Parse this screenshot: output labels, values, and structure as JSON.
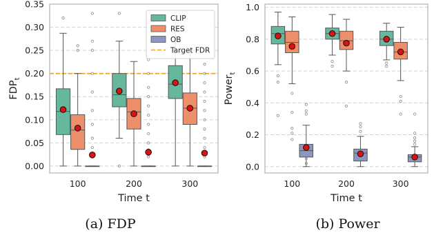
{
  "colors": {
    "CLIP": "#66b79b",
    "RES": "#ec8f6a",
    "OB": "#8b97c0",
    "target": "#e9a21b",
    "mean_marker": "#dd1111",
    "grid": "#d4d4d4"
  },
  "chart_data": [
    {
      "type": "box",
      "panel_caption": "(a) FDP",
      "xlabel": "Time t",
      "ylabel": "FDP",
      "ylabel_sub": "t",
      "categories": [
        "100",
        "200",
        "300"
      ],
      "ylim": [
        -0.015,
        0.35
      ],
      "yticks": [
        "0.00",
        "0.05",
        "0.10",
        "0.15",
        "0.20",
        "0.25",
        "0.30",
        "0.35"
      ],
      "grid": "horizontal dashed",
      "legend": {
        "placement": "top-right",
        "entries": [
          "CLIP",
          "RES",
          "OB",
          "Target FDR"
        ]
      },
      "target_line": {
        "label": "Target FDR",
        "value": 0.2
      },
      "series": [
        {
          "name": "CLIP",
          "boxes": [
            {
              "whisker_low": 0.0,
              "q1": 0.068,
              "median": 0.118,
              "q3": 0.167,
              "whisker_high": 0.287,
              "mean": 0.122,
              "outliers": [
                0.32
              ]
            },
            {
              "whisker_low": 0.06,
              "q1": 0.128,
              "median": 0.154,
              "q3": 0.2,
              "whisker_high": 0.27,
              "mean": 0.162,
              "outliers": [
                0.0,
                0.33
              ]
            },
            {
              "whisker_low": 0.0,
              "q1": 0.146,
              "median": 0.177,
              "q3": 0.217,
              "whisker_high": 0.315,
              "mean": 0.18,
              "outliers": []
            }
          ]
        },
        {
          "name": "RES",
          "boxes": [
            {
              "whisker_low": 0.0,
              "q1": 0.036,
              "median": 0.078,
              "q3": 0.111,
              "whisker_high": 0.2,
              "mean": 0.082,
              "outliers": [
                0.25,
                0.26
              ]
            },
            {
              "whisker_low": 0.0,
              "q1": 0.08,
              "median": 0.117,
              "q3": 0.146,
              "whisker_high": 0.226,
              "mean": 0.113,
              "outliers": []
            },
            {
              "whisker_low": 0.0,
              "q1": 0.09,
              "median": 0.125,
              "q3": 0.158,
              "whisker_high": 0.255,
              "mean": 0.125,
              "outliers": []
            }
          ]
        },
        {
          "name": "OB",
          "boxes": [
            {
              "whisker_low": 0.0,
              "q1": 0.0,
              "median": 0.0,
              "q3": 0.0,
              "whisker_high": 0.0,
              "mean": 0.024,
              "outliers": [
                0.04,
                0.06,
                0.09,
                0.12,
                0.16,
                0.2,
                0.25,
                0.27,
                0.33
              ]
            },
            {
              "whisker_low": 0.0,
              "q1": 0.0,
              "median": 0.0,
              "q3": 0.0,
              "whisker_high": 0.0,
              "mean": 0.03,
              "outliers": [
                0.02,
                0.035,
                0.05,
                0.07,
                0.09,
                0.11,
                0.13,
                0.15,
                0.17,
                0.2,
                0.23
              ]
            },
            {
              "whisker_low": 0.0,
              "q1": 0.0,
              "median": 0.0,
              "q3": 0.0,
              "whisker_high": 0.0,
              "mean": 0.028,
              "outliers": [
                0.02,
                0.04,
                0.06,
                0.08,
                0.1,
                0.12,
                0.14,
                0.16,
                0.18,
                0.2,
                0.22
              ]
            }
          ]
        }
      ]
    },
    {
      "type": "box",
      "panel_caption": "(b) Power",
      "xlabel": "Time t",
      "ylabel": "Power",
      "ylabel_sub": "t",
      "categories": [
        "100",
        "200",
        "300"
      ],
      "ylim": [
        -0.04,
        1.02
      ],
      "yticks": [
        "0.0",
        "0.2",
        "0.4",
        "0.6",
        "0.8",
        "1.0"
      ],
      "grid": "horizontal dashed",
      "series": [
        {
          "name": "CLIP",
          "boxes": [
            {
              "whisker_low": 0.64,
              "q1": 0.77,
              "median": 0.835,
              "q3": 0.88,
              "whisker_high": 0.97,
              "mean": 0.82,
              "outliers": [
                0.32,
                0.53,
                0.57
              ]
            },
            {
              "whisker_low": 0.7,
              "q1": 0.8,
              "median": 0.835,
              "q3": 0.87,
              "whisker_high": 0.955,
              "mean": 0.835,
              "outliers": [
                0.63,
                0.66
              ]
            },
            {
              "whisker_low": 0.67,
              "q1": 0.76,
              "median": 0.8,
              "q3": 0.85,
              "whisker_high": 0.9,
              "mean": 0.8,
              "outliers": [
                0.63,
                0.65
              ]
            }
          ]
        },
        {
          "name": "RES",
          "boxes": [
            {
              "whisker_low": 0.52,
              "q1": 0.715,
              "median": 0.78,
              "q3": 0.85,
              "whisker_high": 0.94,
              "mean": 0.755,
              "outliers": [
                0.17,
                0.21,
                0.24,
                0.34,
                0.46
              ]
            },
            {
              "whisker_low": 0.6,
              "q1": 0.735,
              "median": 0.79,
              "q3": 0.85,
              "whisker_high": 0.925,
              "mean": 0.775,
              "outliers": [
                0.38,
                0.53
              ]
            },
            {
              "whisker_low": 0.54,
              "q1": 0.675,
              "median": 0.72,
              "q3": 0.78,
              "whisker_high": 0.875,
              "mean": 0.72,
              "outliers": [
                0.33,
                0.41,
                0.44
              ]
            }
          ]
        },
        {
          "name": "OB",
          "boxes": [
            {
              "whisker_low": 0.0,
              "q1": 0.06,
              "median": 0.1,
              "q3": 0.14,
              "whisker_high": 0.26,
              "mean": 0.12,
              "outliers": [
                0.02,
                0.05,
                0.33,
                0.35,
                0.39
              ]
            },
            {
              "whisker_low": 0.0,
              "q1": 0.035,
              "median": 0.085,
              "q3": 0.11,
              "whisker_high": 0.19,
              "mean": 0.08,
              "outliers": [
                0.22,
                0.25,
                0.27
              ]
            },
            {
              "whisker_low": 0.0,
              "q1": 0.03,
              "median": 0.06,
              "q3": 0.075,
              "whisker_high": 0.125,
              "mean": 0.06,
              "outliers": [
                0.14,
                0.16,
                0.18,
                0.21,
                0.33
              ]
            }
          ]
        }
      ]
    }
  ]
}
